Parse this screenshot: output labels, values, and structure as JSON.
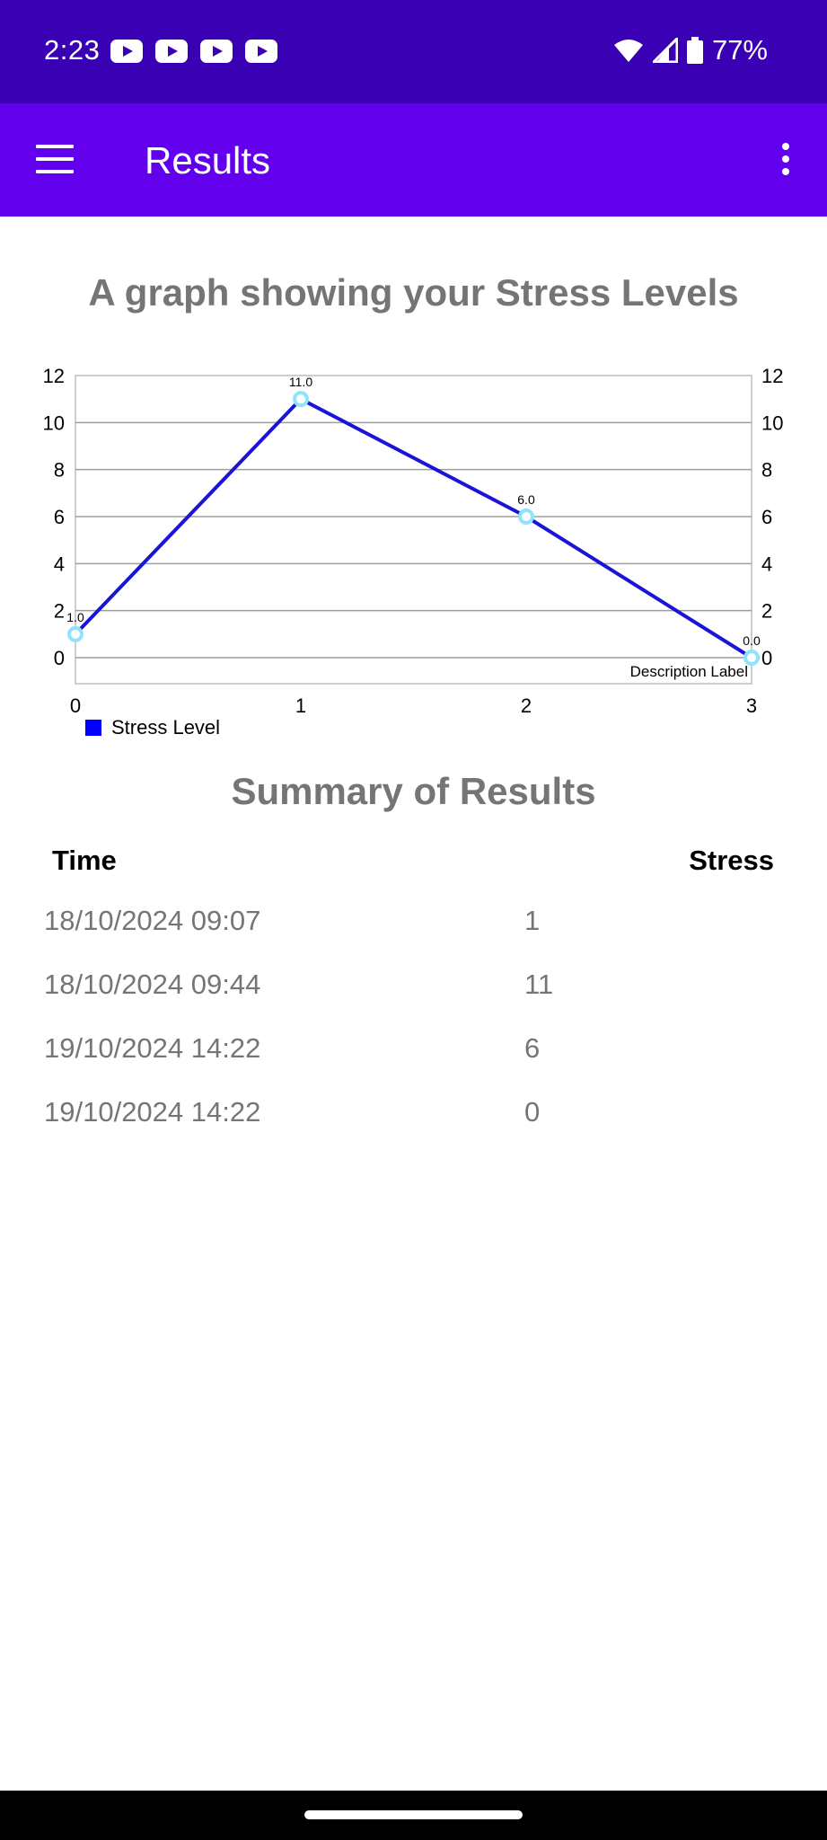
{
  "status_bar": {
    "time": "2:23",
    "battery_percent": "77%",
    "notification_icons": [
      "youtube-icon",
      "youtube-icon",
      "youtube-icon",
      "youtube-icon"
    ],
    "background_color": "#3a00b3"
  },
  "app_bar": {
    "title": "Results",
    "menu_icon": "hamburger-menu-icon",
    "overflow_icon": "more-vertical-icon",
    "background_color": "#6200ee"
  },
  "chart_heading": "A graph showing your Stress Levels",
  "chart_data": {
    "type": "line",
    "x": [
      0,
      1,
      2,
      3
    ],
    "series": [
      {
        "name": "Stress Level",
        "values": [
          1,
          11,
          6,
          0
        ],
        "color": "#1a14d9"
      }
    ],
    "point_labels": [
      "1.0",
      "11.0",
      "6.0",
      "0.0"
    ],
    "x_ticks": [
      "0",
      "1",
      "2",
      "3"
    ],
    "y_ticks": [
      "0",
      "2",
      "4",
      "6",
      "8",
      "10",
      "12"
    ],
    "ylim": [
      0,
      12
    ],
    "xlim": [
      0,
      3
    ],
    "y_axis_both_sides": true,
    "grid": "horizontal",
    "description_label": "Description Label",
    "legend_position": "bottom-left",
    "marker_color": "#8fe3ff"
  },
  "summary": {
    "title": "Summary of Results",
    "headers": {
      "time": "Time",
      "stress": "Stress"
    },
    "rows": [
      {
        "time": "18/10/2024 09:07",
        "stress": "1"
      },
      {
        "time": "18/10/2024 09:44",
        "stress": "11"
      },
      {
        "time": "19/10/2024 14:22",
        "stress": "6"
      },
      {
        "time": "19/10/2024 14:22",
        "stress": "0"
      }
    ]
  }
}
